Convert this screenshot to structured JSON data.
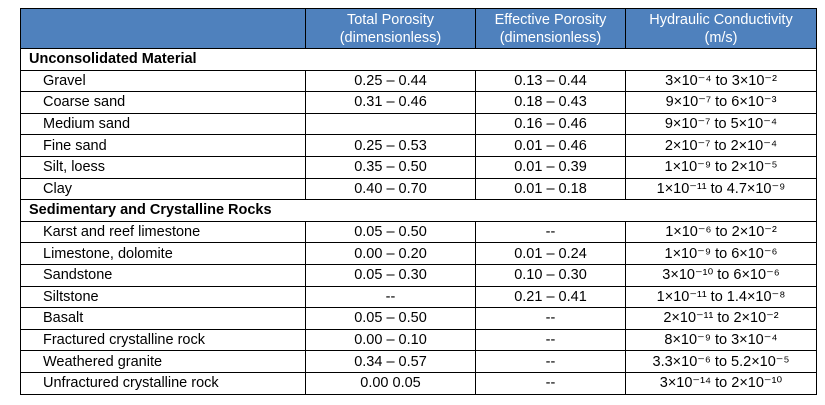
{
  "table": {
    "header": [
      {
        "title": "Total Porosity",
        "unit": "(dimensionless)"
      },
      {
        "title": "Effective Porosity",
        "unit": "(dimensionless)"
      },
      {
        "title": "Hydraulic Conductivity",
        "unit": "(m/s)"
      }
    ],
    "sections": [
      {
        "name": "Unconsolidated Material",
        "rows": [
          [
            "Gravel",
            "0.25 – 0.44",
            "0.13 – 0.44",
            "3×10⁻⁴ to 3×10⁻²"
          ],
          [
            "Coarse sand",
            "0.31 – 0.46",
            "0.18 – 0.43",
            "9×10⁻⁷ to 6×10⁻³"
          ],
          [
            "Medium sand",
            null,
            "0.16 – 0.46",
            "9×10⁻⁷ to 5×10⁻⁴"
          ],
          [
            "Fine sand",
            "0.25 – 0.53",
            "0.01 – 0.46",
            "2×10⁻⁷ to 2×10⁻⁴"
          ],
          [
            "Silt, loess",
            "0.35 – 0.50",
            "0.01 – 0.39",
            "1×10⁻⁹ to 2×10⁻⁵"
          ],
          [
            "Clay",
            "0.40 – 0.70",
            "0.01 – 0.18",
            "1×10⁻¹¹ to 4.7×10⁻⁹"
          ]
        ]
      },
      {
        "name": "Sedimentary and Crystalline Rocks",
        "rows": [
          [
            "Karst and reef limestone",
            "0.05 – 0.50",
            "--",
            "1×10⁻⁶ to 2×10⁻²"
          ],
          [
            "Limestone, dolomite",
            "0.00 – 0.20",
            "0.01 – 0.24",
            "1×10⁻⁹ to 6×10⁻⁶"
          ],
          [
            "Sandstone",
            "0.05 – 0.30",
            "0.10 – 0.30",
            "3×10⁻¹⁰ to 6×10⁻⁶"
          ],
          [
            "Siltstone",
            "--",
            "0.21 – 0.41",
            "1×10⁻¹¹ to 1.4×10⁻⁸"
          ],
          [
            "Basalt",
            "0.05 – 0.50",
            "--",
            "2×10⁻¹¹ to 2×10⁻²"
          ],
          [
            "Fractured crystalline rock",
            "0.00 – 0.10",
            "--",
            "8×10⁻⁹ to 3×10⁻⁴"
          ],
          [
            "Weathered granite",
            "0.34 – 0.57",
            "--",
            "3.3×10⁻⁶ to 5.2×10⁻⁵"
          ],
          [
            "Unfractured crystalline rock",
            "0.00 0.05",
            "--",
            "3×10⁻¹⁴ to 2×10⁻¹⁰"
          ]
        ]
      }
    ]
  }
}
